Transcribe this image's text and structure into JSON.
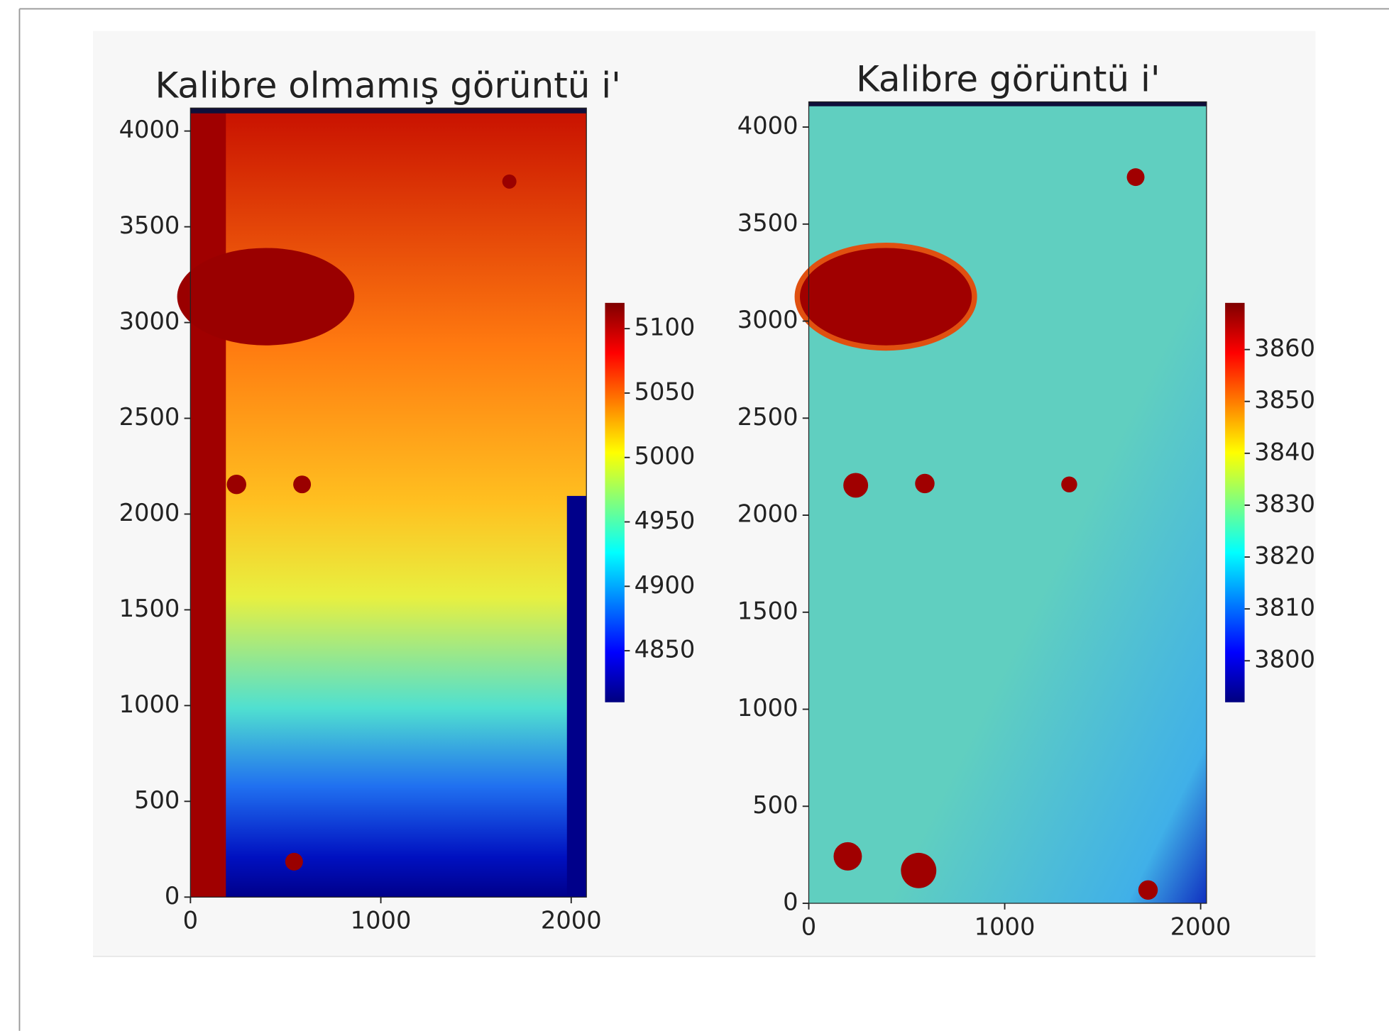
{
  "chart_data": [
    {
      "type": "image",
      "title": "Kalibre olmamış görüntü i'",
      "colormap": "jet",
      "xlim": [
        0,
        2080
      ],
      "xticks": [
        0,
        1000,
        2000
      ],
      "ylim": [
        0,
        4120
      ],
      "yticks": [
        0,
        500,
        1000,
        1500,
        2000,
        2500,
        3000,
        3500,
        4000
      ],
      "colorbar": {
        "clim": [
          4810,
          5120
        ],
        "ticks": [
          4850,
          4900,
          4950,
          5000,
          5050,
          5100
        ]
      }
    },
    {
      "type": "image",
      "title": "Kalibre görüntü i'",
      "colormap": "jet",
      "xlim": [
        0,
        2030
      ],
      "xticks": [
        0,
        1000,
        2000
      ],
      "ylim": [
        0,
        4130
      ],
      "yticks": [
        0,
        500,
        1000,
        1500,
        2000,
        2500,
        3000,
        3500,
        4000
      ],
      "colorbar": {
        "clim": [
          3792,
          3869
        ],
        "ticks": [
          3800,
          3810,
          3820,
          3830,
          3840,
          3850,
          3860
        ]
      }
    }
  ]
}
